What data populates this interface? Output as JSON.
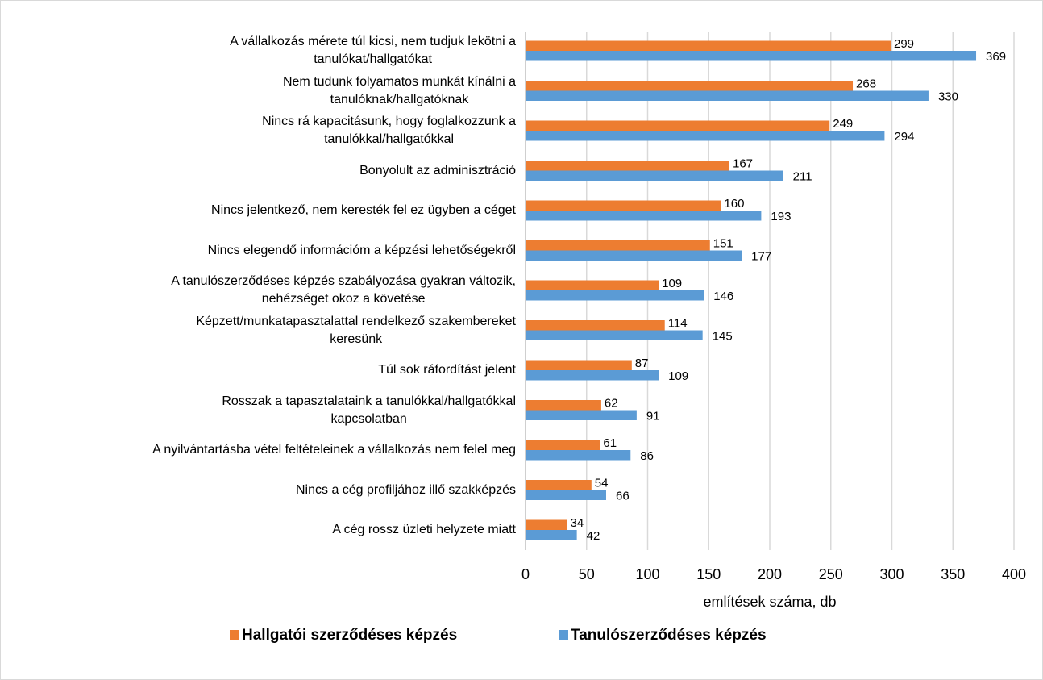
{
  "chart_data": {
    "type": "bar",
    "orientation": "horizontal",
    "x_label": "említések száma, db",
    "categories": [
      "A vállalkozás mérete túl kicsi, nem tudjuk lekötni a\ntanulókat/hallgatókat",
      "Nem tudunk folyamatos munkát kínálni a\ntanulóknak/hallgatóknak",
      "Nincs rá kapacitásunk, hogy foglalkozzunk a\ntanulókkal/hallgatókkal",
      "Bonyolult az adminisztráció",
      "Nincs jelentkező, nem keresték fel ez ügyben a céget",
      "Nincs elegendő információm a képzési lehetőségekről",
      "A tanulószerződéses képzés szabályozása gyakran változik,\nnehézséget okoz a követése",
      "Képzett/munkatapasztalattal rendelkező szakembereket\nkeresünk",
      "Túl sok ráfordítást jelent",
      "Rosszak a tapasztalataink a tanulókkal/hallgatókkal\nkapcsolatban",
      "A nyilvántartásba vétel feltételeinek a vállalkozás nem felel meg",
      "Nincs a cég profiljához illő szakképzés",
      "A cég rossz üzleti helyzete miatt"
    ],
    "series": [
      {
        "name": "Hallgatói szerződéses képzés",
        "color": "#ed7d31",
        "values": [
          299,
          268,
          249,
          167,
          160,
          151,
          109,
          114,
          87,
          62,
          61,
          54,
          34
        ]
      },
      {
        "name": "Tanulószerződéses képzés",
        "color": "#5b9bd5",
        "values": [
          369,
          330,
          294,
          211,
          193,
          177,
          146,
          145,
          109,
          91,
          86,
          66,
          42
        ]
      }
    ],
    "xlim": [
      0,
      400
    ],
    "xticks": [
      0,
      50,
      100,
      150,
      200,
      250,
      300,
      350,
      400
    ],
    "grid": true,
    "legend": "bottom"
  }
}
